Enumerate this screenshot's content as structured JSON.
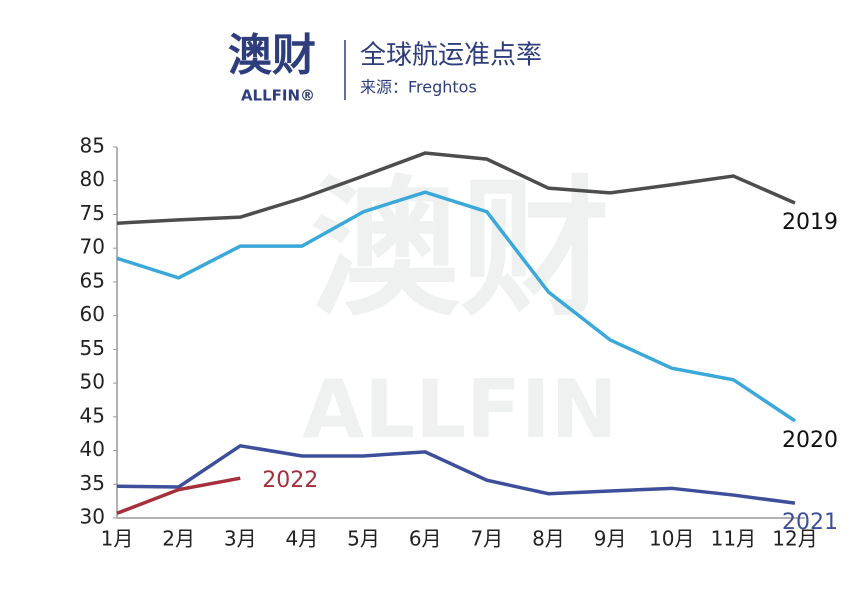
{
  "chart_data": {
    "type": "line",
    "logo": "澳财",
    "logo_sub": "ALLFIN®",
    "title": "全球航运准点率",
    "subtitle": "来源：Freghtos",
    "watermark": [
      "澳财",
      "ALLFIN"
    ],
    "categories": [
      "1月",
      "2月",
      "3月",
      "4月",
      "5月",
      "6月",
      "7月",
      "8月",
      "9月",
      "10月",
      "11月",
      "12月"
    ],
    "series": [
      {
        "name": "2019",
        "color": "#4d4d4d",
        "values": [
          73.7,
          74.2,
          74.6,
          77.4,
          80.7,
          84.1,
          83.2,
          78.9,
          78.2,
          79.4,
          80.7,
          76.7
        ]
      },
      {
        "name": "2020",
        "color": "#3aa8d8",
        "values": [
          68.5,
          65.6,
          70.3,
          70.3,
          75.4,
          78.3,
          75.4,
          63.5,
          56.4,
          52.2,
          50.5,
          44.4
        ]
      },
      {
        "name": "2021",
        "color": "#3d4f9a",
        "values": [
          34.7,
          34.6,
          40.7,
          39.2,
          39.2,
          39.8,
          35.6,
          33.6,
          34.0,
          34.4,
          33.4,
          32.2
        ]
      },
      {
        "name": "2022",
        "color": "#a52f3b",
        "values": [
          30.7,
          34.2,
          35.9,
          null,
          null,
          null,
          null,
          null,
          null,
          null,
          null,
          null
        ]
      }
    ],
    "ylim": [
      30,
      85
    ],
    "yticks": [
      30,
      35,
      40,
      45,
      50,
      55,
      60,
      65,
      70,
      75,
      80,
      85
    ]
  }
}
